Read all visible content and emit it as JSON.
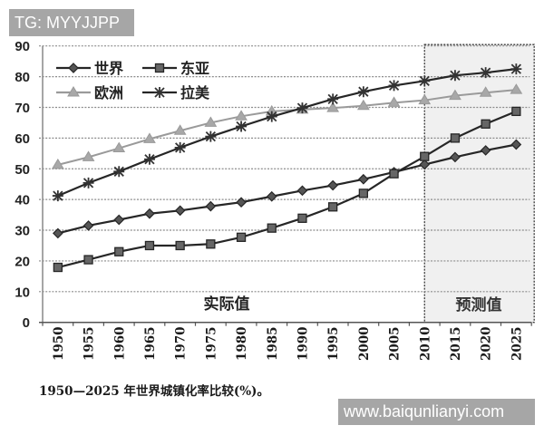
{
  "watermarks": {
    "top_left": "TG: MYYJJPP",
    "bottom_right": "www.baiqunlianyi.com"
  },
  "caption": "1950—2025 年世界城镇化率比较(%)。",
  "colors": {
    "dark_series": "#262626",
    "europe_series": "#9a9a9a",
    "forecast_bg": "#f0f0f0",
    "grid": "#8c8c8c"
  },
  "chart_data": {
    "type": "line",
    "title": "1950—2025 年世界城镇化率比较(%)",
    "xlabel": "",
    "ylabel": "",
    "ylim": [
      0,
      90
    ],
    "yticks": [
      0,
      10,
      20,
      30,
      40,
      50,
      60,
      70,
      80,
      90
    ],
    "grid": "horizontal dotted",
    "legend_position": "upper-left inside",
    "x": [
      "1950",
      "1955",
      "1960",
      "1965",
      "1970",
      "1975",
      "1980",
      "1985",
      "1990",
      "1995",
      "2000",
      "2005",
      "2010",
      "2015",
      "2020",
      "2025"
    ],
    "series": [
      {
        "name": "世界",
        "marker": "diamond",
        "color": "#262626",
        "values": [
          29.0,
          31.5,
          33.4,
          35.4,
          36.4,
          37.8,
          39.1,
          41.0,
          42.9,
          44.6,
          46.6,
          48.9,
          51.4,
          53.8,
          56.0,
          57.9
        ]
      },
      {
        "name": "东亚",
        "marker": "square",
        "color": "#262626",
        "values": [
          17.9,
          20.4,
          23.0,
          25.0,
          25.0,
          25.5,
          27.7,
          30.7,
          33.9,
          37.6,
          42.0,
          48.4,
          54.0,
          60.0,
          64.6,
          68.7
        ]
      },
      {
        "name": "欧洲",
        "marker": "triangle",
        "color": "#9a9a9a",
        "values": [
          51.3,
          53.8,
          56.7,
          59.7,
          62.4,
          65.0,
          67.1,
          68.7,
          69.3,
          69.8,
          70.5,
          71.5,
          72.3,
          73.8,
          74.8,
          75.7
        ]
      },
      {
        "name": "拉美",
        "marker": "asterisk",
        "color": "#262626",
        "values": [
          41.2,
          45.4,
          49.1,
          53.1,
          56.9,
          60.5,
          63.8,
          67.0,
          69.8,
          72.7,
          75.1,
          77.1,
          78.6,
          80.4,
          81.3,
          82.5
        ]
      }
    ],
    "annotations": [
      {
        "text": "实际值",
        "region": "1950-2010"
      },
      {
        "text": "预测值",
        "region": "2010-2025 (shaded forecast box)"
      }
    ],
    "forecast_start": "2010"
  }
}
